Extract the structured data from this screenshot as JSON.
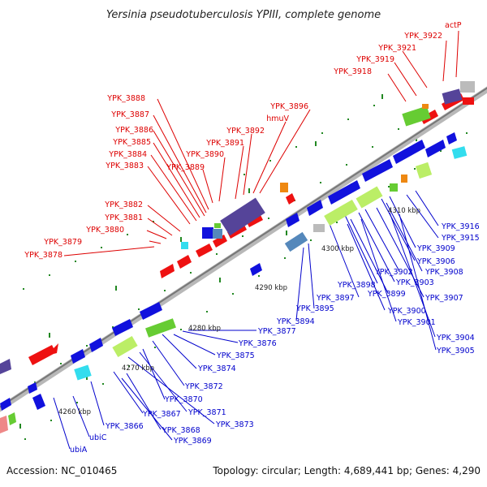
{
  "title": "Yersinia pseudotuberculosis YPIII, complete genome",
  "footer": {
    "accession": "Accession: NC_010465",
    "summary": "Topology: circular; Length: 4,689,441 bp; Genes: 4,290"
  },
  "colors": {
    "forward_label": "#dd0000",
    "reverse_label": "#0000cc",
    "backbone": "#8a8a8a",
    "tick": "#228822",
    "red_gene": "#ee1111",
    "blue_gene": "#1111dd",
    "green_feature": "#66cc33",
    "lightgreen_feature": "#bbee66",
    "cyan_feature": "#33ddee",
    "steel_feature": "#5588bb",
    "purple_feature": "#554499",
    "orange_feature": "#ee8811",
    "gray_feature": "#bbbbbb"
  },
  "kbp_marks": [
    "4260 kbp",
    "4270 kbp",
    "4280 kbp",
    "4290 kbp",
    "4300 kbp",
    "4310 kbp"
  ],
  "forward_labels": [
    "YPK_3922",
    "actP",
    "YPK_3921",
    "YPK_3919",
    "YPK_3918",
    "YPK_3896",
    "hmuV",
    "YPK_3892",
    "YPK_3891",
    "YPK_3890",
    "YPK_3889",
    "YPK_3888",
    "YPK_3887",
    "YPK_3886",
    "YPK_3885",
    "YPK_3884",
    "YPK_3883",
    "YPK_3882",
    "YPK_3881",
    "YPK_3880",
    "YPK_3879",
    "YPK_3878"
  ],
  "reverse_labels": [
    "YPK_3916",
    "YPK_3915",
    "YPK_3909",
    "YPK_3906",
    "YPK_3908",
    "YPK_3902",
    "YPK_3903",
    "YPK_3907",
    "YPK_3898",
    "YPK_3899",
    "YPK_3897",
    "YPK_3900",
    "YPK_3895",
    "YPK_3901",
    "YPK_3894",
    "YPK_3904",
    "YPK_3905",
    "YPK_3877",
    "YPK_3876",
    "YPK_3875",
    "YPK_3874",
    "YPK_3872",
    "YPK_3870",
    "YPK_3871",
    "YPK_3873",
    "YPK_3867",
    "YPK_3866",
    "YPK_3868",
    "YPK_3869",
    "ubiC",
    "ubiA"
  ]
}
